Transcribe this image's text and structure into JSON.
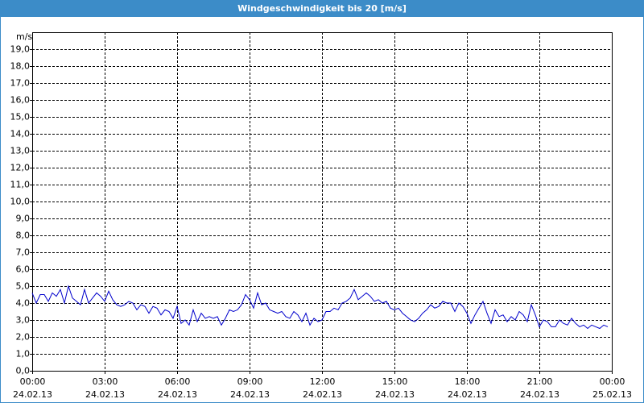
{
  "chart_data": {
    "type": "line",
    "title": "Windgeschwindigkeit bis 20 [m/s]",
    "y_label": "m/s",
    "x": [
      0,
      10,
      20,
      30,
      40,
      50,
      60,
      70,
      80,
      90,
      100,
      110,
      120,
      130,
      140,
      150,
      160,
      170,
      180,
      190,
      200,
      210,
      220,
      230,
      240,
      250,
      260,
      270,
      280,
      290,
      300,
      310,
      320,
      330,
      340,
      350,
      360,
      370,
      380,
      390,
      400,
      410,
      420,
      430,
      440,
      450,
      460,
      470,
      480,
      490,
      500,
      510,
      520,
      530,
      540,
      550,
      560,
      570,
      580,
      590,
      600,
      610,
      620,
      630,
      640,
      650,
      660,
      670,
      680,
      690,
      700,
      710,
      720,
      730,
      740,
      750,
      760,
      770,
      780,
      790,
      800,
      810,
      820,
      830,
      840,
      850,
      860,
      870,
      880,
      890,
      900,
      910,
      920,
      930,
      940,
      950,
      960,
      970,
      980,
      990,
      1000,
      1010,
      1020,
      1030,
      1040,
      1050,
      1060,
      1070,
      1080,
      1090,
      1100,
      1110,
      1120,
      1130,
      1140,
      1150,
      1160,
      1170,
      1180,
      1190,
      1200,
      1210,
      1220,
      1230,
      1240,
      1250,
      1260,
      1270,
      1280,
      1290,
      1300,
      1310,
      1320,
      1330,
      1340,
      1350,
      1360,
      1370,
      1380,
      1390,
      1400,
      1410,
      1420,
      1430
    ],
    "series": [
      {
        "name": "Windgeschwindigkeit",
        "color": "#0000cc",
        "values": [
          4.6,
          4.0,
          4.5,
          4.5,
          4.1,
          4.6,
          4.4,
          4.8,
          4.0,
          5.0,
          4.3,
          4.1,
          3.9,
          4.8,
          4.0,
          4.3,
          4.6,
          4.4,
          4.1,
          4.7,
          4.2,
          3.9,
          3.8,
          3.9,
          4.1,
          4.0,
          3.6,
          3.9,
          3.8,
          3.4,
          3.8,
          3.7,
          3.3,
          3.6,
          3.5,
          3.1,
          3.8,
          2.8,
          3.0,
          2.7,
          3.6,
          2.9,
          3.4,
          3.1,
          3.2,
          3.1,
          3.2,
          2.7,
          3.1,
          3.6,
          3.5,
          3.6,
          3.9,
          4.5,
          4.2,
          3.7,
          4.6,
          3.9,
          4.0,
          3.6,
          3.5,
          3.4,
          3.5,
          3.2,
          3.1,
          3.5,
          3.3,
          2.9,
          3.4,
          2.7,
          3.1,
          2.9,
          3.0,
          3.5,
          3.5,
          3.7,
          3.6,
          4.0,
          4.1,
          4.3,
          4.8,
          4.2,
          4.4,
          4.6,
          4.4,
          4.1,
          4.2,
          4.0,
          4.1,
          3.7,
          3.6,
          3.7,
          3.4,
          3.2,
          3.0,
          2.9,
          3.1,
          3.4,
          3.6,
          3.9,
          3.7,
          3.8,
          4.1,
          4.0,
          4.0,
          3.5,
          4.0,
          3.8,
          3.4,
          2.8,
          3.3,
          3.7,
          4.1,
          3.4,
          2.8,
          3.6,
          3.2,
          3.3,
          2.9,
          3.2,
          3.0,
          3.5,
          3.3,
          2.9,
          3.9,
          3.3,
          2.6,
          3.0,
          2.9,
          2.6,
          2.6,
          3.0,
          2.8,
          2.7,
          3.1,
          2.8,
          2.6,
          2.7,
          2.5,
          2.7,
          2.6,
          2.5,
          2.7,
          2.6
        ]
      }
    ],
    "xlim": [
      0,
      1440
    ],
    "xticks": [
      {
        "value": 0,
        "label": "00:00",
        "date": "24.02.13"
      },
      {
        "value": 180,
        "label": "03:00",
        "date": "24.02.13"
      },
      {
        "value": 360,
        "label": "06:00",
        "date": "24.02.13"
      },
      {
        "value": 540,
        "label": "09:00",
        "date": "24.02.13"
      },
      {
        "value": 720,
        "label": "12:00",
        "date": "24.02.13"
      },
      {
        "value": 900,
        "label": "15:00",
        "date": "24.02.13"
      },
      {
        "value": 1080,
        "label": "18:00",
        "date": "24.02.13"
      },
      {
        "value": 1260,
        "label": "21:00",
        "date": "24.02.13"
      },
      {
        "value": 1440,
        "label": "00:00",
        "date": "25.02.13"
      }
    ],
    "ylim": [
      0,
      20
    ],
    "yticks": [
      {
        "value": 0,
        "label": "0,0"
      },
      {
        "value": 1,
        "label": "1,0"
      },
      {
        "value": 2,
        "label": "2,0"
      },
      {
        "value": 3,
        "label": "3,0"
      },
      {
        "value": 4,
        "label": "4,0"
      },
      {
        "value": 5,
        "label": "5,0"
      },
      {
        "value": 6,
        "label": "6,0"
      },
      {
        "value": 7,
        "label": "7,0"
      },
      {
        "value": 8,
        "label": "8,0"
      },
      {
        "value": 9,
        "label": "9,0"
      },
      {
        "value": 10,
        "label": "10,0"
      },
      {
        "value": 11,
        "label": "11,0"
      },
      {
        "value": 12,
        "label": "12,0"
      },
      {
        "value": 13,
        "label": "13,0"
      },
      {
        "value": 14,
        "label": "14,0"
      },
      {
        "value": 15,
        "label": "15,0"
      },
      {
        "value": 16,
        "label": "16,0"
      },
      {
        "value": 17,
        "label": "17,0"
      },
      {
        "value": 18,
        "label": "18,0"
      },
      {
        "value": 19,
        "label": "19,0"
      }
    ],
    "grid": true
  }
}
